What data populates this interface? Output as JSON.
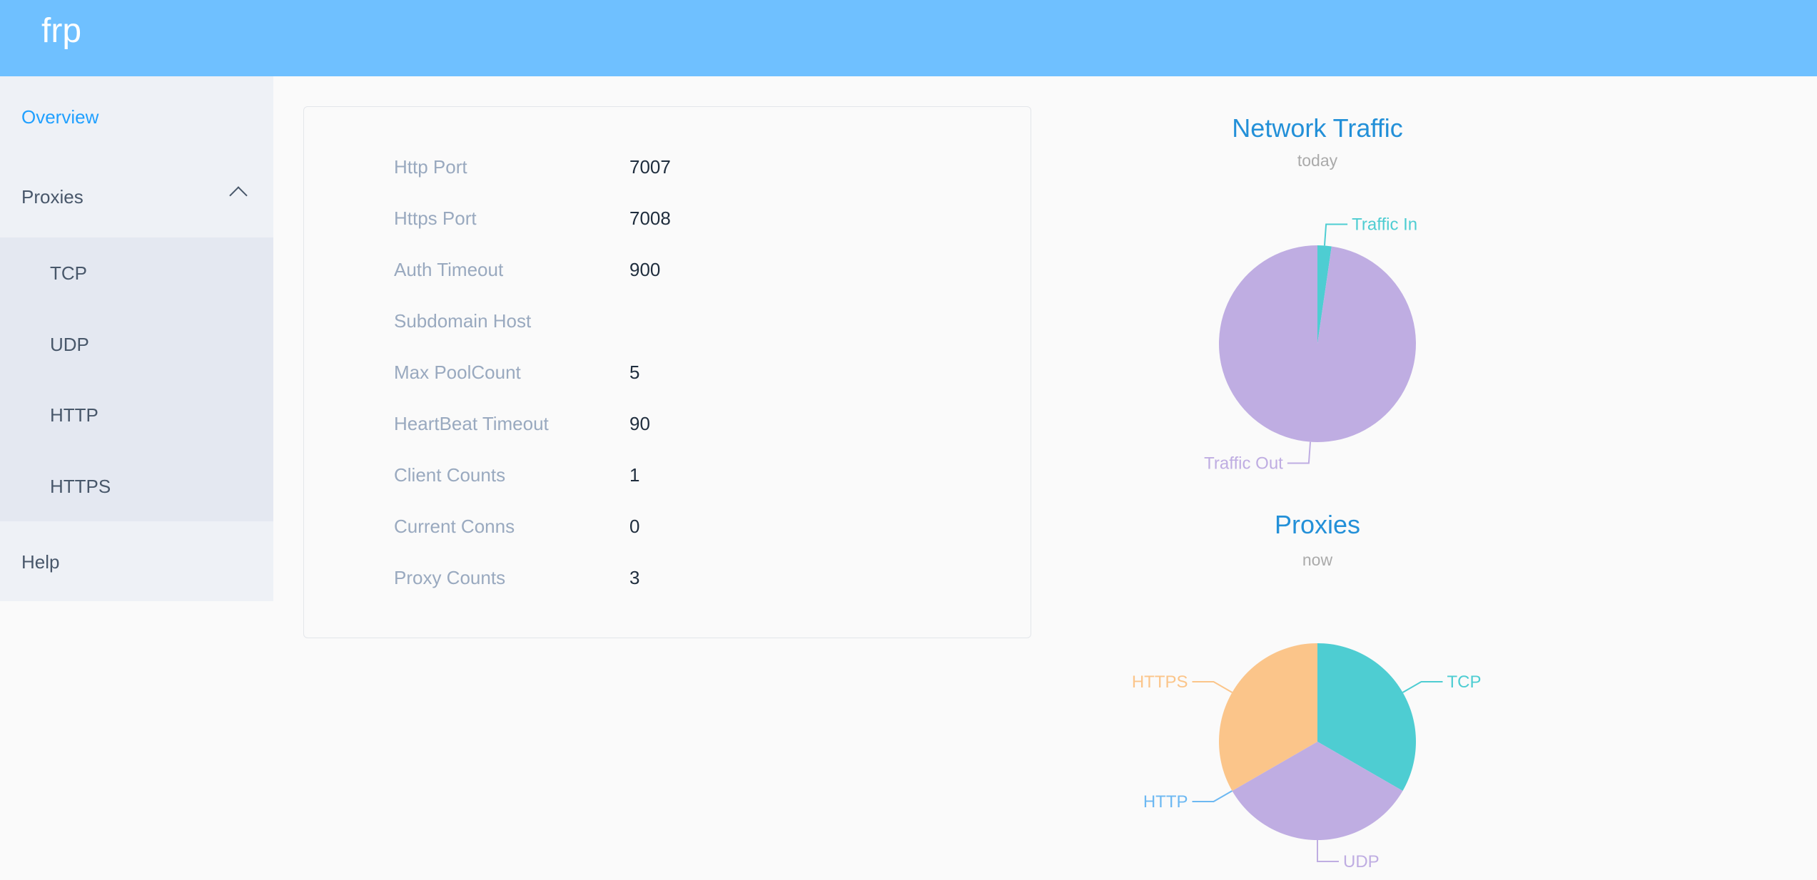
{
  "header": {
    "logo": "frp"
  },
  "sidebar": {
    "overview": "Overview",
    "proxies": "Proxies",
    "proxy_items": [
      "TCP",
      "UDP",
      "HTTP",
      "HTTPS"
    ],
    "help": "Help"
  },
  "server_info": [
    {
      "label": "Http Port",
      "value": "7007"
    },
    {
      "label": "Https Port",
      "value": "7008"
    },
    {
      "label": "Auth Timeout",
      "value": "900"
    },
    {
      "label": "Subdomain Host",
      "value": ""
    },
    {
      "label": "Max PoolCount",
      "value": "5"
    },
    {
      "label": "HeartBeat Timeout",
      "value": "90"
    },
    {
      "label": "Client Counts",
      "value": "1"
    },
    {
      "label": "Current Conns",
      "value": "0"
    },
    {
      "label": "Proxy Counts",
      "value": "3"
    }
  ],
  "colors": {
    "header": "#6fc0ff",
    "accent": "#20a0ff",
    "title": "#2390d8"
  },
  "chart_data": [
    {
      "type": "pie",
      "title": "Network Traffic",
      "subtitle": "today",
      "slices": [
        {
          "name": "Traffic In",
          "value": 2.3,
          "color": "#4ecdd2"
        },
        {
          "name": "Traffic Out",
          "value": 97.7,
          "color": "#bfade2"
        }
      ]
    },
    {
      "type": "pie",
      "title": "Proxies",
      "subtitle": "now",
      "slices": [
        {
          "name": "TCP",
          "value": 1,
          "color": "#4ecdd2"
        },
        {
          "name": "UDP",
          "value": 1,
          "color": "#bfade2"
        },
        {
          "name": "HTTP",
          "value": 0,
          "color": "#6cb8f2"
        },
        {
          "name": "HTTPS",
          "value": 1,
          "color": "#fbc58a"
        }
      ]
    }
  ]
}
